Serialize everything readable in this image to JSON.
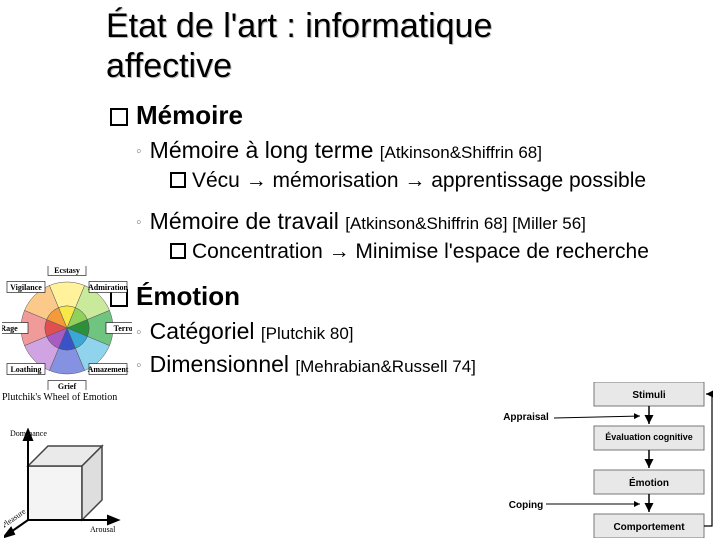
{
  "title_line1": "État de l'art : informatique",
  "title_line2": "affective",
  "s1": {
    "h": "Mémoire",
    "a": {
      "t": "Mémoire à long terme ",
      "ref": "[Atkinson&Shiffrin 68]",
      "sub": "Vécu → mémorisation → apprentissage possible"
    },
    "b": {
      "t": "Mémoire de travail ",
      "ref": "[Atkinson&Shiffrin 68] [Miller 56]",
      "sub": "Concentration → Minimise l'espace de recherche"
    }
  },
  "s2": {
    "h": "Émotion",
    "a": {
      "t": "Catégoriel ",
      "ref": "[Plutchik 80]"
    },
    "b": {
      "t": "Dimensionnel ",
      "ref": "[Mehrabian&Russell 74]"
    }
  },
  "wheel": {
    "caption": "Plutchik's Wheel of Emotion",
    "labels": [
      "Ecstasy",
      "Admiration",
      "Terror",
      "Amazement",
      "Grief",
      "Loathing",
      "Rage",
      "Vigilance"
    ],
    "colors": [
      "#f7e84a",
      "#8fd15a",
      "#2c8f3a",
      "#3aa7d4",
      "#3952c7",
      "#a95bc4",
      "#e05050",
      "#f59a3a"
    ],
    "inner_colors": [
      "#fff29a",
      "#c8ea9a",
      "#6fc47f",
      "#8fd4ec",
      "#8592e2",
      "#d0a4e2",
      "#f09a9a",
      "#fbc98a"
    ]
  },
  "cube": {
    "axes": [
      "Dominance",
      "Arousal",
      "Pleasure"
    ]
  },
  "appraisal": {
    "stimuli": "Stimuli",
    "eval": "Évaluation cognitive",
    "emotion": "Émotion",
    "comport": "Comportement",
    "appr": "Appraisal",
    "coping": "Coping"
  }
}
